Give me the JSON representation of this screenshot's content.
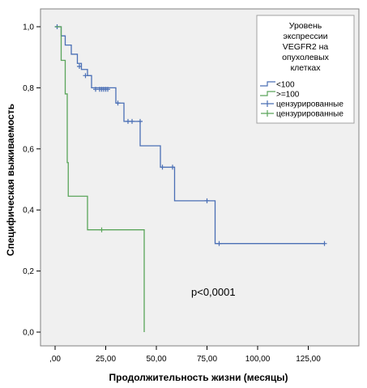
{
  "chart_data": {
    "type": "line",
    "xlabel": "Продолжительность жизни (месяцы)",
    "ylabel": "Специфическая выживаемость",
    "xlim": [
      0,
      140
    ],
    "ylim": [
      0,
      1.05
    ],
    "x_ticks": [
      {
        "value": 0,
        "label": ",00"
      },
      {
        "value": 25,
        "label": "25,00"
      },
      {
        "value": 50,
        "label": "50,00"
      },
      {
        "value": 75,
        "label": "75,00"
      },
      {
        "value": 100,
        "label": "100,00"
      },
      {
        "value": 125,
        "label": "125,00"
      }
    ],
    "y_ticks": [
      {
        "value": 0,
        "label": "0,0"
      },
      {
        "value": 0.2,
        "label": "0,2"
      },
      {
        "value": 0.4,
        "label": "0,4"
      },
      {
        "value": 0.6,
        "label": "0,6"
      },
      {
        "value": 0.8,
        "label": "0,8"
      },
      {
        "value": 1.0,
        "label": "1,0"
      }
    ],
    "legend": {
      "title": [
        "Уровень",
        "экспрессии",
        "VEGFR2 на",
        "опухолевых",
        "клетках"
      ],
      "placement": "top-right",
      "entries": [
        {
          "label": "<100",
          "kind": "line",
          "color": "#4a6fb5"
        },
        {
          "label": ">=100",
          "kind": "line",
          "color": "#5aa55a"
        },
        {
          "label": "цензурированные",
          "kind": "censor",
          "color": "#4a6fb5"
        },
        {
          "label": "цензурированные",
          "kind": "censor",
          "color": "#5aa55a"
        }
      ]
    },
    "annotation": "p<0,0001",
    "series": [
      {
        "color": "#4a6fb5",
        "steps": [
          [
            0,
            1.0
          ],
          [
            3,
            0.97
          ],
          [
            5,
            0.94
          ],
          [
            8,
            0.91
          ],
          [
            11,
            0.88
          ],
          [
            13,
            0.86
          ],
          [
            16,
            0.84
          ],
          [
            18,
            0.8
          ],
          [
            30,
            0.75
          ],
          [
            34,
            0.69
          ],
          [
            42,
            0.61
          ],
          [
            52,
            0.54
          ],
          [
            59,
            0.43
          ],
          [
            79,
            0.29
          ],
          [
            133,
            0.29
          ]
        ],
        "censored": [
          [
            1,
            1.0
          ],
          [
            12,
            0.87
          ],
          [
            15,
            0.84
          ],
          [
            20,
            0.795
          ],
          [
            22,
            0.795
          ],
          [
            23,
            0.795
          ],
          [
            24,
            0.795
          ],
          [
            25,
            0.795
          ],
          [
            26,
            0.795
          ],
          [
            31,
            0.75
          ],
          [
            36,
            0.69
          ],
          [
            38,
            0.69
          ],
          [
            42,
            0.69
          ],
          [
            53,
            0.54
          ],
          [
            58,
            0.54
          ],
          [
            75,
            0.43
          ],
          [
            81,
            0.29
          ],
          [
            133,
            0.29
          ]
        ]
      },
      {
        "color": "#5aa55a",
        "steps": [
          [
            0,
            1.0
          ],
          [
            3,
            0.89
          ],
          [
            5,
            0.78
          ],
          [
            6,
            0.555
          ],
          [
            6.5,
            0.445
          ],
          [
            16,
            0.335
          ],
          [
            44,
            0.0
          ]
        ],
        "censored": [
          [
            23,
            0.335
          ]
        ]
      }
    ]
  }
}
